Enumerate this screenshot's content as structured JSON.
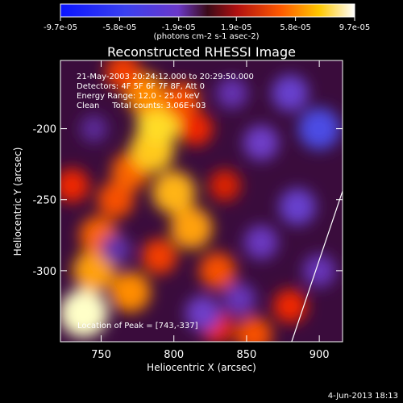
{
  "colorbar": {
    "tick_labels": [
      "-9.7e-05",
      "-5.8e-05",
      "-1.9e-05",
      "1.9e-05",
      "5.8e-05",
      "9.7e-05"
    ],
    "tick_values": [
      -9.7e-05,
      -5.8e-05,
      -1.9e-05,
      1.9e-05,
      5.8e-05,
      9.7e-05
    ],
    "range": [
      -9.7e-05,
      9.7e-05
    ],
    "unit_label": "(photons cm-2 s-1 asec-2)"
  },
  "chart_data": {
    "type": "heatmap",
    "title": "Reconstructed RHESSI Image",
    "xlabel": "Heliocentric X (arcsec)",
    "ylabel": "Heliocentric Y (arcsec)",
    "xlim": [
      722,
      916
    ],
    "ylim": [
      -350,
      -152
    ],
    "x_ticks": [
      750,
      800,
      850,
      900
    ],
    "x_tick_labels": [
      "750",
      "800",
      "850",
      "900"
    ],
    "y_ticks": [
      -200,
      -250,
      -300
    ],
    "y_tick_labels": [
      "-200",
      "-250",
      "-300"
    ],
    "grid": false,
    "annotations": [
      "21-May-2003 20:24:12.000 to 20:29:50.000",
      "Detectors: 4F 5F 6F 7F 8F, Att 0",
      "Energy Range: 12.0 - 25.0 keV",
      "Clean     Total counts: 3.06E+03"
    ],
    "peak_label": "Location of Peak = [743,-337]",
    "peak": [
      743,
      -337
    ],
    "limb_line": [
      [
        881,
        -350
      ],
      [
        916,
        -244
      ]
    ],
    "intensity_note": "blobs: value is fraction of colorbar range (-1 to 1)",
    "blobs": [
      {
        "x": 738,
        "y": -330,
        "v": 1.0
      },
      {
        "x": 745,
        "y": -300,
        "v": 0.75
      },
      {
        "x": 748,
        "y": -275,
        "v": 0.6
      },
      {
        "x": 760,
        "y": -250,
        "v": 0.55
      },
      {
        "x": 770,
        "y": -230,
        "v": 0.6
      },
      {
        "x": 785,
        "y": -215,
        "v": 0.85
      },
      {
        "x": 790,
        "y": -195,
        "v": 0.9
      },
      {
        "x": 780,
        "y": -175,
        "v": 0.7
      },
      {
        "x": 805,
        "y": -180,
        "v": 0.55
      },
      {
        "x": 815,
        "y": -200,
        "v": 0.45
      },
      {
        "x": 800,
        "y": -245,
        "v": 0.8
      },
      {
        "x": 812,
        "y": -270,
        "v": 0.75
      },
      {
        "x": 790,
        "y": -290,
        "v": 0.5
      },
      {
        "x": 770,
        "y": -315,
        "v": 0.7
      },
      {
        "x": 830,
        "y": -300,
        "v": 0.55
      },
      {
        "x": 830,
        "y": -340,
        "v": 0.4
      },
      {
        "x": 855,
        "y": -345,
        "v": 0.55
      },
      {
        "x": 880,
        "y": -325,
        "v": 0.45
      },
      {
        "x": 765,
        "y": -160,
        "v": 0.5
      },
      {
        "x": 835,
        "y": -240,
        "v": 0.35
      },
      {
        "x": 730,
        "y": -240,
        "v": 0.45
      },
      {
        "x": 745,
        "y": -200,
        "v": -0.2
      },
      {
        "x": 900,
        "y": -200,
        "v": -0.75
      },
      {
        "x": 880,
        "y": -175,
        "v": -0.55
      },
      {
        "x": 860,
        "y": -210,
        "v": -0.5
      },
      {
        "x": 885,
        "y": -255,
        "v": -0.55
      },
      {
        "x": 860,
        "y": -280,
        "v": -0.45
      },
      {
        "x": 900,
        "y": -300,
        "v": -0.4
      },
      {
        "x": 845,
        "y": -320,
        "v": -0.4
      },
      {
        "x": 820,
        "y": -330,
        "v": -0.5
      },
      {
        "x": 760,
        "y": -285,
        "v": -0.3
      },
      {
        "x": 840,
        "y": -175,
        "v": -0.35
      }
    ]
  },
  "footer": {
    "timestamp": "4-Jun-2013 18:13"
  }
}
